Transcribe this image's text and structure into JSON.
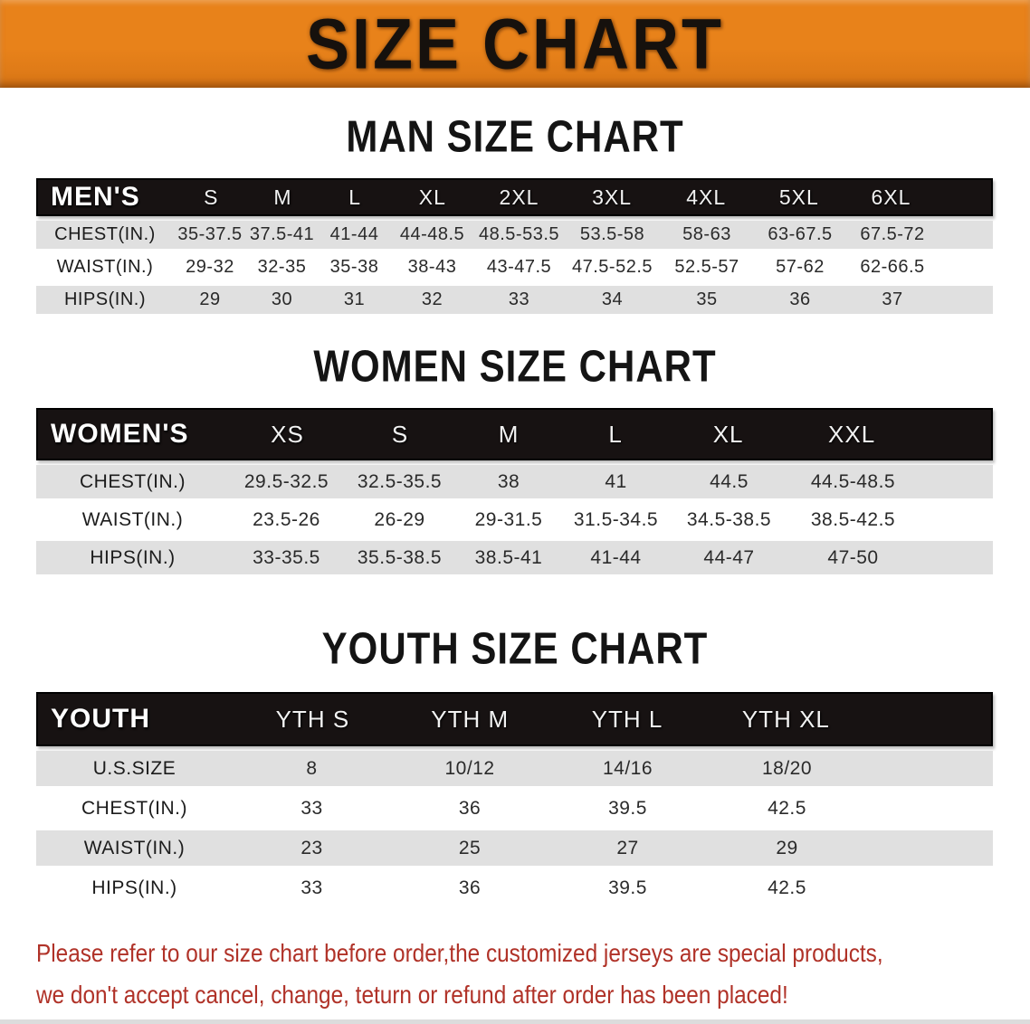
{
  "banner": {
    "title": "SIZE CHART"
  },
  "colors": {
    "banner_bg": "#E8821A",
    "table_header_bg": "#171212",
    "row_gray": "#E0E0E0",
    "note_red": "#B03228"
  },
  "sections": [
    {
      "id": "men",
      "heading": "MAN SIZE CHART",
      "group_label": "MEN'S",
      "columns": [
        "S",
        "M",
        "L",
        "XL",
        "2XL",
        "3XL",
        "4XL",
        "5XL",
        "6XL"
      ],
      "rows": [
        {
          "label": "CHEST(IN.)",
          "values": [
            "35-37.5",
            "37.5-41",
            "41-44",
            "44-48.5",
            "48.5-53.5",
            "53.5-58",
            "58-63",
            "63-67.5",
            "67.5-72"
          ]
        },
        {
          "label": "WAIST(IN.)",
          "values": [
            "29-32",
            "32-35",
            "35-38",
            "38-43",
            "43-47.5",
            "47.5-52.5",
            "52.5-57",
            "57-62",
            "62-66.5"
          ]
        },
        {
          "label": "HIPS(IN.)",
          "values": [
            "29",
            "30",
            "31",
            "32",
            "33",
            "34",
            "35",
            "36",
            "37"
          ]
        }
      ]
    },
    {
      "id": "women",
      "heading": "WOMEN SIZE CHART",
      "group_label": "WOMEN'S",
      "columns": [
        "XS",
        "S",
        "M",
        "L",
        "XL",
        "XXL"
      ],
      "rows": [
        {
          "label": "CHEST(IN.)",
          "values": [
            "29.5-32.5",
            "32.5-35.5",
            "38",
            "41",
            "44.5",
            "44.5-48.5"
          ]
        },
        {
          "label": "WAIST(IN.)",
          "values": [
            "23.5-26",
            "26-29",
            "29-31.5",
            "31.5-34.5",
            "34.5-38.5",
            "38.5-42.5"
          ]
        },
        {
          "label": "HIPS(IN.)",
          "values": [
            "33-35.5",
            "35.5-38.5",
            "38.5-41",
            "41-44",
            "44-47",
            "47-50"
          ]
        }
      ]
    },
    {
      "id": "youth",
      "heading": "YOUTH SIZE CHART",
      "group_label": "YOUTH",
      "columns": [
        "YTH S",
        "YTH M",
        "YTH L",
        "YTH XL"
      ],
      "rows": [
        {
          "label": "U.S.SIZE",
          "values": [
            "8",
            "10/12",
            "14/16",
            "18/20"
          ]
        },
        {
          "label": "CHEST(IN.)",
          "values": [
            "33",
            "36",
            "39.5",
            "42.5"
          ]
        },
        {
          "label": "WAIST(IN.)",
          "values": [
            "23",
            "25",
            "27",
            "29"
          ]
        },
        {
          "label": "HIPS(IN.)",
          "values": [
            "33",
            "36",
            "39.5",
            "42.5"
          ]
        }
      ]
    }
  ],
  "footer": {
    "line1": "Please refer to our size chart before order,the customized jerseys are special products,",
    "line2": "we don't accept cancel, change, teturn or refund after order has been placed!"
  }
}
